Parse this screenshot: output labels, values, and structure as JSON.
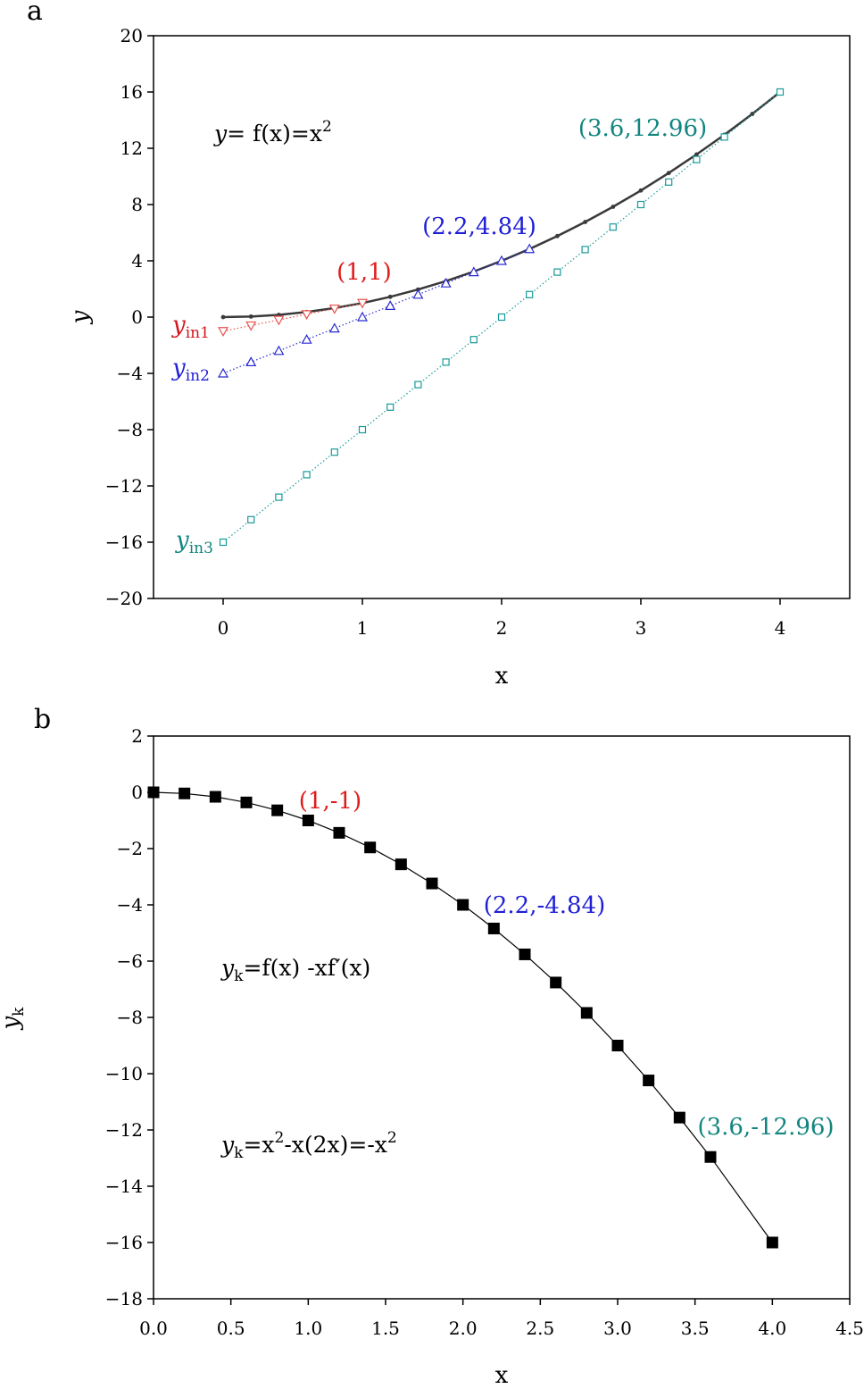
{
  "chart_data": [
    {
      "type": "line",
      "panel_label": "a",
      "xlabel": "x",
      "ylabel": "y",
      "xlim": [
        -0.5,
        4.5
      ],
      "ylim": [
        -20,
        20
      ],
      "xticks": [
        0,
        1,
        2,
        3,
        4
      ],
      "yticks": [
        -20,
        -16,
        -12,
        -8,
        -4,
        0,
        4,
        8,
        12,
        16,
        20
      ],
      "x_tick_labels": [
        "0",
        "1",
        "2",
        "3",
        "4"
      ],
      "y_tick_labels": [
        "−20",
        "−16",
        "−12",
        "−8",
        "−4",
        "0",
        "4",
        "8",
        "12",
        "16",
        "20"
      ],
      "grid": false,
      "series": [
        {
          "key": "f",
          "color": "#3a3a3a",
          "style": "solid-dots",
          "x": [
            0,
            0.2,
            0.4,
            0.6,
            0.8,
            1.0,
            1.2,
            1.4,
            1.6,
            1.8,
            2.0,
            2.2,
            2.4,
            2.6,
            2.8,
            3.0,
            3.2,
            3.4,
            3.6,
            3.8,
            4.0
          ],
          "y": [
            0,
            0.04,
            0.16,
            0.36,
            0.64,
            1.0,
            1.44,
            1.96,
            2.56,
            3.24,
            4.0,
            4.84,
            5.76,
            6.76,
            7.84,
            9.0,
            10.24,
            11.56,
            12.96,
            14.44,
            16.0
          ]
        },
        {
          "key": "yin1",
          "color": "#e8534e",
          "style": "dotted-triangle-down",
          "x": [
            0,
            0.2,
            0.4,
            0.6,
            0.8,
            1.0
          ],
          "y": [
            -1.0,
            -0.6,
            -0.2,
            0.2,
            0.6,
            1.0
          ]
        },
        {
          "key": "yin2",
          "color": "#2a2ad0",
          "style": "dotted-triangle-up",
          "x": [
            0,
            0.2,
            0.4,
            0.6,
            0.8,
            1.0,
            1.2,
            1.4,
            1.6,
            1.8,
            2.0,
            2.2
          ],
          "y": [
            -4.0,
            -3.2,
            -2.4,
            -1.6,
            -0.8,
            0.0,
            0.8,
            1.6,
            2.4,
            3.2,
            4.0,
            4.84
          ]
        },
        {
          "key": "yin3",
          "color": "#1a9a9a",
          "style": "dotted-square",
          "x": [
            0,
            0.2,
            0.4,
            0.6,
            0.8,
            1.0,
            1.2,
            1.4,
            1.6,
            1.8,
            2.0,
            2.2,
            2.4,
            2.6,
            2.8,
            3.0,
            3.2,
            3.4,
            3.6,
            4.0
          ],
          "y": [
            -16.0,
            -14.4,
            -12.8,
            -11.2,
            -9.6,
            -8.0,
            -6.4,
            -4.8,
            -3.2,
            -1.6,
            0.0,
            1.6,
            3.2,
            4.8,
            6.4,
            8.0,
            9.6,
            11.2,
            12.8,
            16.0
          ]
        }
      ],
      "curve_labels": [
        {
          "key": "yin1",
          "main": "y",
          "sub": "in1",
          "color": "#d0161b"
        },
        {
          "key": "yin2",
          "main": "y",
          "sub": "in2",
          "color": "#1f1fd6"
        },
        {
          "key": "yin3",
          "main": "y",
          "sub": "in3",
          "color": "#11857f"
        }
      ],
      "annotations": [
        {
          "text": "(1,1)",
          "color": "#e11b1b"
        },
        {
          "text": "(2.2,4.84)",
          "color": "#1f1fd6"
        },
        {
          "text": "(3.6,12.96)",
          "color": "#11857f"
        }
      ],
      "equation": {
        "y": "y",
        "eq": "= f(x)=x",
        "sup": "2"
      }
    },
    {
      "type": "line",
      "panel_label": "b",
      "xlabel": "x",
      "ylabel": "y",
      "ylabel_sub": "k",
      "xlim": [
        0.0,
        4.5
      ],
      "ylim": [
        -18,
        2
      ],
      "xticks": [
        0.0,
        0.5,
        1.0,
        1.5,
        2.0,
        2.5,
        3.0,
        3.5,
        4.0,
        4.5
      ],
      "yticks": [
        -18,
        -16,
        -14,
        -12,
        -10,
        -8,
        -6,
        -4,
        -2,
        0,
        2
      ],
      "x_tick_labels": [
        "0.0",
        "0.5",
        "1.0",
        "1.5",
        "2.0",
        "2.5",
        "3.0",
        "3.5",
        "4.0",
        "4.5"
      ],
      "y_tick_labels": [
        "−18",
        "−16",
        "−14",
        "−12",
        "−10",
        "−8",
        "−6",
        "−4",
        "−2",
        "0",
        "2"
      ],
      "grid": false,
      "series": [
        {
          "key": "yk",
          "color": "#000000",
          "style": "line-filled-square",
          "x": [
            0,
            0.2,
            0.4,
            0.6,
            0.8,
            1.0,
            1.2,
            1.4,
            1.6,
            1.8,
            2.0,
            2.2,
            2.4,
            2.6,
            2.8,
            3.0,
            3.2,
            3.4,
            3.6,
            4.0
          ],
          "y": [
            0,
            -0.04,
            -0.16,
            -0.36,
            -0.64,
            -1.0,
            -1.44,
            -1.96,
            -2.56,
            -3.24,
            -4.0,
            -4.84,
            -5.76,
            -6.76,
            -7.84,
            -9.0,
            -10.24,
            -11.56,
            -12.96,
            -16.0
          ]
        }
      ],
      "annotations": [
        {
          "text": "(1,-1)",
          "color": "#e11b1b"
        },
        {
          "text": "(2.2,-4.84)",
          "color": "#1f1fd6"
        },
        {
          "text": "(3.6,-12.96)",
          "color": "#11857f"
        }
      ],
      "equations": [
        {
          "y": "y",
          "sub": "k",
          "rest": "=f(x) -xf′(x)"
        },
        {
          "y": "y",
          "sub": "k",
          "pre": "=x",
          "sup1": "2",
          "mid": "-x(2x)=-x",
          "sup2": "2"
        }
      ]
    }
  ]
}
